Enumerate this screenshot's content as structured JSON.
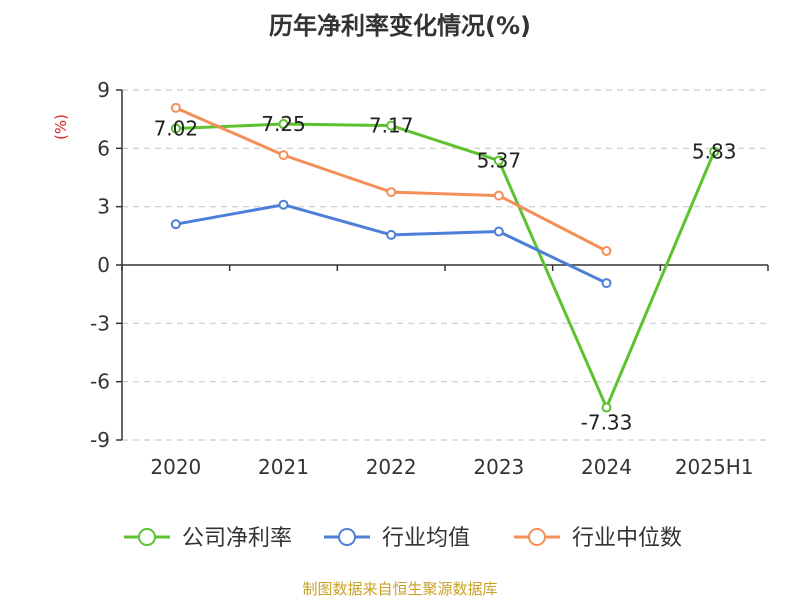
{
  "chart_data": {
    "type": "line",
    "title": "历年净利率变化情况(%)",
    "ylabel": "(%)",
    "ylim": [
      -9,
      9
    ],
    "yticks": [
      9,
      6,
      3,
      0,
      -3,
      -6,
      -9
    ],
    "categories": [
      "2020",
      "2021",
      "2022",
      "2023",
      "2024",
      "2025H1"
    ],
    "grid": true,
    "legend_position": "bottom",
    "series": [
      {
        "name": "公司净利率",
        "color": "#5cc22f",
        "values": [
          7.02,
          7.25,
          7.17,
          5.37,
          -7.33,
          5.83
        ],
        "labels": [
          "7.02",
          "7.25",
          "7.17",
          "5.37",
          "-7.33",
          "5.83"
        ]
      },
      {
        "name": "行业均值",
        "color": "#4e7fd8",
        "values": [
          2.1,
          3.1,
          1.55,
          1.72,
          -0.93,
          null
        ]
      },
      {
        "name": "行业中位数",
        "color": "#f58f58",
        "values": [
          8.08,
          5.65,
          3.75,
          3.57,
          0.72,
          null
        ]
      }
    ],
    "source": "制图数据来自恒生聚源数据库"
  }
}
